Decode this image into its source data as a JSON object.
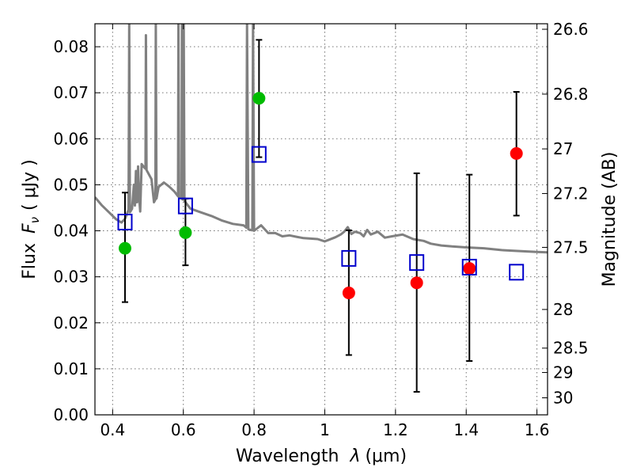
{
  "chart_data": {
    "type": "scatter",
    "title": "",
    "xlabel": "Wavelength",
    "xlabel_symbol": "λ",
    "xlabel_unit": "(μm)",
    "ylabel": "Flux",
    "ylabel_symbol": "F",
    "ylabel_subscript": "ν",
    "ylabel_unit": "( μJy )",
    "ylabel_right": "Magnitude (AB)",
    "xlim": [
      0.35,
      1.63
    ],
    "ylim": [
      0.0,
      0.085
    ],
    "grid": true,
    "x_ticks": [
      0.4,
      0.6,
      0.8,
      1.0,
      1.2,
      1.4,
      1.6
    ],
    "x_tick_labels": [
      "0.4",
      "0.6",
      "0.8",
      "1",
      "1.2",
      "1.4",
      "1.6"
    ],
    "y_ticks": [
      0.0,
      0.01,
      0.02,
      0.03,
      0.04,
      0.05,
      0.06,
      0.07,
      0.08
    ],
    "y_tick_labels": [
      "0.00",
      "0.01",
      "0.02",
      "0.03",
      "0.04",
      "0.05",
      "0.06",
      "0.07",
      "0.08"
    ],
    "right_ticks": [
      {
        "label": "26.6",
        "flux": 0.0838
      },
      {
        "label": "26.8",
        "flux": 0.0697
      },
      {
        "label": "27",
        "flux": 0.0578
      },
      {
        "label": "27.2",
        "flux": 0.0481
      },
      {
        "label": "27.5",
        "flux": 0.0364
      },
      {
        "label": "28",
        "flux": 0.0229
      },
      {
        "label": "28.5",
        "flux": 0.0145
      },
      {
        "label": "29",
        "flux": 0.0092
      },
      {
        "label": "30",
        "flux": 0.0037
      }
    ],
    "series": [
      {
        "kind": "model-spectrum",
        "color": "#808080",
        "points": [
          [
            0.35,
            0.0473
          ],
          [
            0.37,
            0.0455
          ],
          [
            0.39,
            0.044
          ],
          [
            0.41,
            0.0425
          ],
          [
            0.425,
            0.0418
          ],
          [
            0.435,
            0.0426
          ],
          [
            0.445,
            0.0446
          ],
          [
            0.447,
            0.085
          ],
          [
            0.449,
            0.044
          ],
          [
            0.455,
            0.0448
          ],
          [
            0.46,
            0.05
          ],
          [
            0.463,
            0.0455
          ],
          [
            0.466,
            0.053
          ],
          [
            0.469,
            0.0462
          ],
          [
            0.472,
            0.054
          ],
          [
            0.475,
            0.047
          ],
          [
            0.478,
            0.0442
          ],
          [
            0.482,
            0.0545
          ],
          [
            0.487,
            0.054
          ],
          [
            0.493,
            0.0535
          ],
          [
            0.494,
            0.0825
          ],
          [
            0.496,
            0.0532
          ],
          [
            0.51,
            0.0512
          ],
          [
            0.517,
            0.0462
          ],
          [
            0.521,
            0.0468
          ],
          [
            0.522,
            0.085
          ],
          [
            0.524,
            0.047
          ],
          [
            0.53,
            0.0495
          ],
          [
            0.545,
            0.0505
          ],
          [
            0.56,
            0.0496
          ],
          [
            0.575,
            0.0485
          ],
          [
            0.585,
            0.0475
          ],
          [
            0.586,
            0.085
          ],
          [
            0.588,
            0.0472
          ],
          [
            0.595,
            0.047
          ],
          [
            0.596,
            0.085
          ],
          [
            0.598,
            0.0468
          ],
          [
            0.601,
            0.085
          ],
          [
            0.603,
            0.0465
          ],
          [
            0.62,
            0.0448
          ],
          [
            0.65,
            0.044
          ],
          [
            0.68,
            0.0432
          ],
          [
            0.71,
            0.0422
          ],
          [
            0.74,
            0.0415
          ],
          [
            0.77,
            0.0412
          ],
          [
            0.778,
            0.0407
          ],
          [
            0.78,
            0.085
          ],
          [
            0.784,
            0.0403
          ],
          [
            0.795,
            0.0401
          ],
          [
            0.797,
            0.085
          ],
          [
            0.8,
            0.04
          ],
          [
            0.82,
            0.0412
          ],
          [
            0.84,
            0.0395
          ],
          [
            0.86,
            0.0395
          ],
          [
            0.88,
            0.0388
          ],
          [
            0.9,
            0.039
          ],
          [
            0.92,
            0.0387
          ],
          [
            0.94,
            0.0384
          ],
          [
            0.96,
            0.0383
          ],
          [
            0.98,
            0.0382
          ],
          [
            1.0,
            0.0377
          ],
          [
            1.01,
            0.038
          ],
          [
            1.03,
            0.0386
          ],
          [
            1.045,
            0.0392
          ],
          [
            1.055,
            0.0398
          ],
          [
            1.065,
            0.0408
          ],
          [
            1.075,
            0.0393
          ],
          [
            1.085,
            0.0398
          ],
          [
            1.1,
            0.0395
          ],
          [
            1.11,
            0.0388
          ],
          [
            1.12,
            0.0402
          ],
          [
            1.13,
            0.0392
          ],
          [
            1.15,
            0.0398
          ],
          [
            1.17,
            0.0385
          ],
          [
            1.19,
            0.0388
          ],
          [
            1.22,
            0.0392
          ],
          [
            1.25,
            0.0382
          ],
          [
            1.28,
            0.0378
          ],
          [
            1.3,
            0.0372
          ],
          [
            1.33,
            0.0368
          ],
          [
            1.36,
            0.0366
          ],
          [
            1.4,
            0.0364
          ],
          [
            1.45,
            0.0362
          ],
          [
            1.5,
            0.0358
          ],
          [
            1.55,
            0.0356
          ],
          [
            1.6,
            0.0354
          ],
          [
            1.63,
            0.0353
          ]
        ]
      },
      {
        "kind": "detections",
        "marker": "circle",
        "color": "#00bb00",
        "points": [
          {
            "x": 0.435,
            "y": 0.0362,
            "err_low": 0.0245,
            "err_high": 0.0483
          },
          {
            "x": 0.606,
            "y": 0.0396,
            "err_low": 0.0325,
            "err_high": 0.047
          },
          {
            "x": 0.814,
            "y": 0.0688,
            "err_low": 0.056,
            "err_high": 0.0815
          }
        ]
      },
      {
        "kind": "detections",
        "marker": "circle",
        "color": "#ff0000",
        "points": [
          {
            "x": 1.068,
            "y": 0.0265,
            "err_low": 0.013,
            "err_high": 0.0401
          },
          {
            "x": 1.26,
            "y": 0.0287,
            "err_low": 0.005,
            "err_high": 0.0525
          },
          {
            "x": 1.409,
            "y": 0.0318,
            "err_low": 0.0117,
            "err_high": 0.0522
          },
          {
            "x": 1.542,
            "y": 0.0568,
            "err_low": 0.0433,
            "err_high": 0.0702
          }
        ]
      },
      {
        "kind": "model-photometry",
        "marker": "square",
        "color": "#0000cc",
        "points": [
          {
            "x": 0.435,
            "y": 0.0419
          },
          {
            "x": 0.606,
            "y": 0.0454
          },
          {
            "x": 0.814,
            "y": 0.0566
          },
          {
            "x": 1.068,
            "y": 0.034
          },
          {
            "x": 1.26,
            "y": 0.0331
          },
          {
            "x": 1.409,
            "y": 0.0321
          },
          {
            "x": 1.542,
            "y": 0.031
          }
        ]
      }
    ]
  }
}
